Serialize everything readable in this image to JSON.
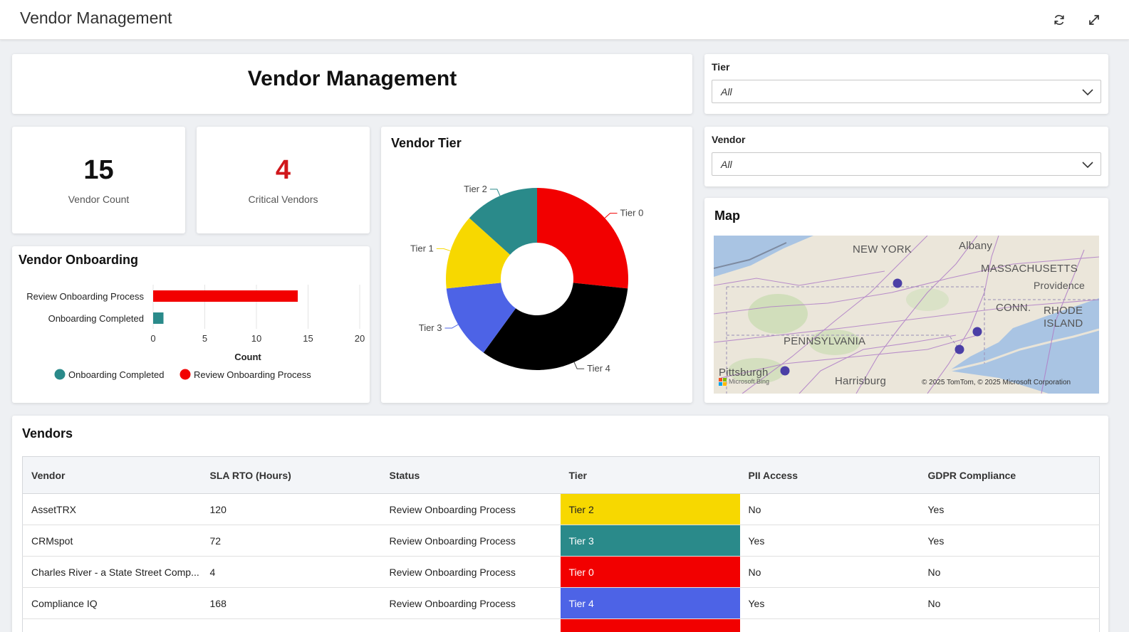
{
  "topbar": {
    "title": "Vendor Management",
    "refresh_icon": "refresh-icon",
    "expand_icon": "expand-icon"
  },
  "header": {
    "title": "Vendor Management"
  },
  "kpis": [
    {
      "value": "15",
      "label": "Vendor Count",
      "color": "#111111"
    },
    {
      "value": "4",
      "label": "Critical Vendors",
      "color": "#d0171b"
    }
  ],
  "filters": {
    "tier": {
      "label": "Tier",
      "value": "All"
    },
    "vendor": {
      "label": "Vendor",
      "value": "All"
    }
  },
  "onboarding": {
    "title": "Vendor Onboarding",
    "chart_data": {
      "type": "bar",
      "orientation": "horizontal",
      "categories": [
        "Review Onboarding Process",
        "Onboarding Completed"
      ],
      "series": [
        {
          "name": "Onboarding Completed",
          "color": "#2a8a8a",
          "values": [
            0,
            1
          ]
        },
        {
          "name": "Review Onboarding Process",
          "color": "#f20000",
          "values": [
            14,
            0
          ]
        }
      ],
      "xlabel": "Count",
      "xlim": [
        0,
        20
      ],
      "xticks": [
        "0",
        "5",
        "10",
        "15",
        "20"
      ],
      "legend": "bottom",
      "grid": true
    }
  },
  "tier_chart": {
    "title": "Vendor Tier",
    "chart_data": {
      "type": "pie",
      "donut": true,
      "slices": [
        {
          "label": "Tier 0",
          "value": 4,
          "color": "#f20000"
        },
        {
          "label": "Tier 4",
          "value": 5,
          "color": "#000000"
        },
        {
          "label": "Tier 3",
          "value": 2,
          "color": "#4d63e6"
        },
        {
          "label": "Tier 1",
          "value": 2,
          "color": "#f7d800"
        },
        {
          "label": "Tier 2",
          "value": 2,
          "color": "#2a8a8a"
        }
      ]
    }
  },
  "map": {
    "title": "Map",
    "labels": {
      "new_york": "NEW YORK",
      "albany": "Albany",
      "massachusetts": "MASSACHUSETTS",
      "providence": "Providence",
      "conn": "CONN.",
      "rhode_island": "RHODE ISLAND",
      "pennsylvania": "PENNSYLVANIA",
      "pittsburgh": "Pittsburgh",
      "harrisburg": "Harrisburg"
    },
    "bing_text": "Microsoft Bing",
    "copyright": "© 2025 TomTom, © 2025 Microsoft Corporation"
  },
  "vendors": {
    "title": "Vendors",
    "columns": [
      "Vendor",
      "SLA RTO (Hours)",
      "Status",
      "Tier",
      "PII Access",
      "GDPR Compliance"
    ],
    "rows": [
      {
        "vendor": "AssetTRX",
        "sla": "120",
        "status": "Review Onboarding Process",
        "tier": "Tier 2",
        "tier_color": "#f7d800",
        "tier_text_color": "#222222",
        "pii": "No",
        "gdpr": "Yes"
      },
      {
        "vendor": "CRMspot",
        "sla": "72",
        "status": "Review Onboarding Process",
        "tier": "Tier 3",
        "tier_color": "#2a8a8a",
        "tier_text_color": "#ffffff",
        "pii": "Yes",
        "gdpr": "Yes"
      },
      {
        "vendor": "Charles River - a State Street Comp...",
        "sla": "4",
        "status": "Review Onboarding Process",
        "tier": "Tier 0",
        "tier_color": "#f20000",
        "tier_text_color": "#ffffff",
        "pii": "No",
        "gdpr": "No"
      },
      {
        "vendor": "Compliance IQ",
        "sla": "168",
        "status": "Review Onboarding Process",
        "tier": "Tier 4",
        "tier_color": "#4d63e6",
        "tier_text_color": "#ffffff",
        "pii": "Yes",
        "gdpr": "No"
      }
    ]
  }
}
